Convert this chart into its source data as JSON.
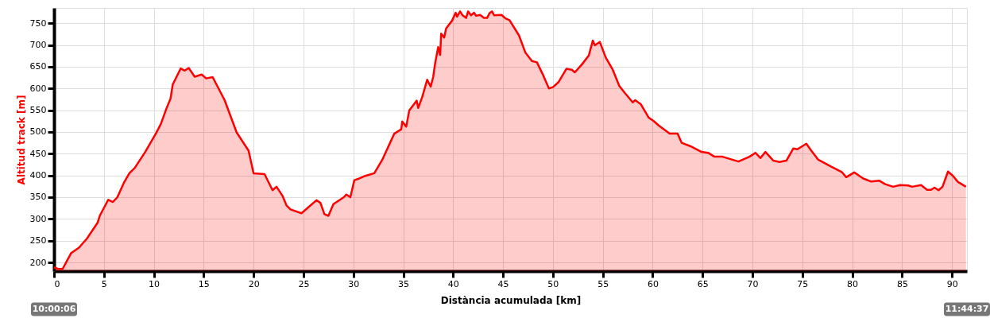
{
  "chart_data": {
    "type": "area",
    "xlabel": "Distància acumulada [km]",
    "ylabel": "Altitud track [m]",
    "xlim": [
      0,
      91.5
    ],
    "ylim": [
      180,
      785
    ],
    "xticks": [
      0,
      5,
      10,
      15,
      20,
      25,
      30,
      35,
      40,
      45,
      50,
      55,
      60,
      65,
      70,
      75,
      80,
      85,
      90
    ],
    "yticks": [
      200,
      250,
      300,
      350,
      400,
      450,
      500,
      550,
      600,
      650,
      700,
      750
    ],
    "grid": true,
    "line_style": "solid",
    "marker": "none",
    "annotations": [
      "10:00:06",
      "11:44:37"
    ],
    "series": [
      {
        "color": "#ff0000",
        "x": [
          0.0,
          0.4,
          0.86,
          1.7,
          2.5,
          3.3,
          4.36,
          4.6,
          5.43,
          5.9,
          6.35,
          7.0,
          7.55,
          8.08,
          9.14,
          10.2,
          10.7,
          11.27,
          11.67,
          11.9,
          12.7,
          13.1,
          13.5,
          14.1,
          14.8,
          15.25,
          15.9,
          17.1,
          18.3,
          19.5,
          20.0,
          21.1,
          21.9,
          22.3,
          22.9,
          23.3,
          23.7,
          24.8,
          26.3,
          26.7,
          27.1,
          27.5,
          28.0,
          29.05,
          29.3,
          29.7,
          30.1,
          30.6,
          31.2,
          32.1,
          32.9,
          34.1,
          34.8,
          34.9,
          35.3,
          35.6,
          36.35,
          36.5,
          36.9,
          37.4,
          37.75,
          38.0,
          38.2,
          38.5,
          38.7,
          38.8,
          39.1,
          39.3,
          39.9,
          40.25,
          40.4,
          40.7,
          40.95,
          41.3,
          41.5,
          41.8,
          42.1,
          42.3,
          42.7,
          43.1,
          43.4,
          43.65,
          43.9,
          44.1,
          44.85,
          45.25,
          45.65,
          46.6,
          47.25,
          47.9,
          48.4,
          48.95,
          49.6,
          50.0,
          50.55,
          51.35,
          51.9,
          52.2,
          52.9,
          53.6,
          54.0,
          54.2,
          54.7,
          55.3,
          56.0,
          56.65,
          57.2,
          58.0,
          58.25,
          58.8,
          59.6,
          60.1,
          60.6,
          61.7,
          62.5,
          62.9,
          63.8,
          64.9,
          65.55,
          66.2,
          67.0,
          68.6,
          69.7,
          70.3,
          70.8,
          71.3,
          72.1,
          72.7,
          73.4,
          74.1,
          74.5,
          75.4,
          75.9,
          76.6,
          77.9,
          78.95,
          79.4,
          80.2,
          81.1,
          81.9,
          82.7,
          83.3,
          84.1,
          84.8,
          85.6,
          86.0,
          86.9,
          87.5,
          87.9,
          88.25,
          88.65,
          89.05,
          89.6,
          90.1,
          90.6,
          91.4
        ],
        "values": [
          189,
          185,
          185,
          221,
          234,
          255,
          291,
          308,
          344,
          339,
          350,
          383,
          405,
          417,
          454,
          496,
          518,
          554,
          576,
          609,
          646,
          641,
          647,
          627,
          632,
          623,
          626,
          573,
          499,
          457,
          405,
          403,
          366,
          374,
          353,
          331,
          322,
          313,
          343,
          337,
          311,
          307,
          334,
          350,
          356,
          350,
          389,
          393,
          399,
          405,
          436,
          496,
          506,
          524,
          512,
          549,
          572,
          555,
          580,
          620,
          604,
          626,
          658,
          695,
          677,
          726,
          717,
          738,
          756,
          774,
          765,
          777,
          768,
          762,
          777,
          768,
          774,
          767,
          769,
          762,
          762,
          773,
          777,
          768,
          769,
          761,
          757,
          722,
          682,
          663,
          660,
          634,
          600,
          603,
          614,
          645,
          643,
          637,
          655,
          676,
          710,
          699,
          707,
          671,
          643,
          606,
          590,
          568,
          573,
          564,
          533,
          525,
          515,
          496,
          496,
          475,
          467,
          454,
          452,
          443,
          443,
          432,
          443,
          452,
          440,
          454,
          434,
          431,
          434,
          462,
          460,
          473,
          457,
          436,
          420,
          408,
          396,
          407,
          393,
          386,
          388,
          380,
          374,
          378,
          377,
          374,
          378,
          367,
          367,
          372,
          366,
          374,
          409,
          399,
          385,
          374
        ]
      }
    ]
  }
}
